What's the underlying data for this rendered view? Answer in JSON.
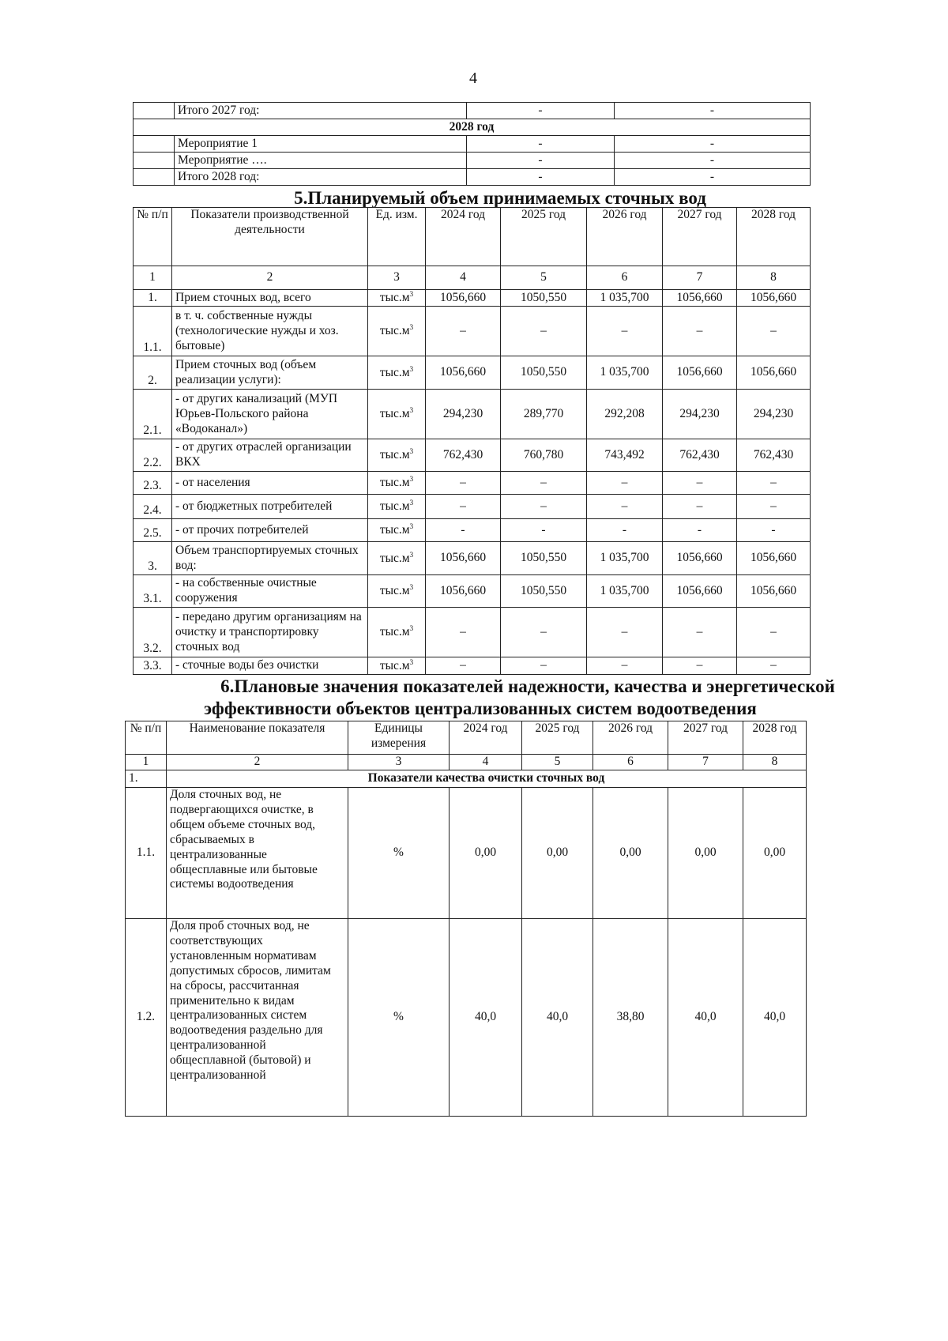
{
  "page_number": "4",
  "events_table": {
    "rows": [
      {
        "label": "Итого 2027 год:",
        "v1": "-",
        "v2": "-"
      },
      {
        "section": "2028 год"
      },
      {
        "label": "Мероприятие 1",
        "v1": "-",
        "v2": "-"
      },
      {
        "label": "Мероприятие ….",
        "v1": "-",
        "v2": "-"
      },
      {
        "label": "Итого 2028 год:",
        "v1": "-",
        "v2": "-"
      }
    ]
  },
  "section5": {
    "title": "5.Планируемый объем принимаемых сточных вод",
    "headers": [
      "№ п/п",
      "Показатели производственной деятельности",
      "Ед. изм.",
      "2024 год",
      "2025 год",
      "2026 год",
      "2027 год",
      "2028 год"
    ],
    "col_numbers": [
      "1",
      "2",
      "3",
      "4",
      "5",
      "6",
      "7",
      "8"
    ],
    "unit": "тыс.м",
    "unit_sup": "3",
    "rows": [
      {
        "no": "1.",
        "name": "Прием сточных вод, всего",
        "values": [
          "1056,660",
          "1050,550",
          "1 035,700",
          "1056,660",
          "1056,660"
        ]
      },
      {
        "no": "1.1.",
        "name": "в т. ч. собственные нужды (технологические нужды и хоз. бытовые)",
        "values": [
          "–",
          "–",
          "–",
          "–",
          "–"
        ]
      },
      {
        "no": "2.",
        "name": "Прием сточных вод (объем реализации услуги):",
        "values": [
          "1056,660",
          "1050,550",
          "1 035,700",
          "1056,660",
          "1056,660"
        ]
      },
      {
        "no": "2.1.",
        "name": "- от других канализаций (МУП Юрьев-Польского района «Водоканал»)",
        "values": [
          "294,230",
          "289,770",
          "292,208",
          "294,230",
          "294,230"
        ]
      },
      {
        "no": "2.2.",
        "name": " - от других отраслей организации ВКХ",
        "values": [
          "762,430",
          "760,780",
          "743,492",
          "762,430",
          "762,430"
        ]
      },
      {
        "no": "2.3.",
        "name": "- от населения",
        "values": [
          "–",
          "–",
          "–",
          "–",
          "–"
        ]
      },
      {
        "no": "2.4.",
        "name": "- от бюджетных потребителей",
        "values": [
          "–",
          "–",
          "–",
          "–",
          "–"
        ]
      },
      {
        "no": "2.5.",
        "name": "- от прочих потребителей",
        "values": [
          "-",
          "-",
          "-",
          "-",
          "-"
        ]
      },
      {
        "no": "3.",
        "name": "Объем транспортируемых сточных вод:",
        "values": [
          "1056,660",
          "1050,550",
          "1 035,700",
          "1056,660",
          "1056,660"
        ]
      },
      {
        "no": "3.1.",
        "name": "- на собственные очистные сооружения",
        "values": [
          "1056,660",
          "1050,550",
          "1 035,700",
          "1056,660",
          "1056,660"
        ]
      },
      {
        "no": "3.2.",
        "name": "- передано другим организациям на очистку и транспортировку сточных вод",
        "values": [
          "–",
          "–",
          "–",
          "–",
          "–"
        ]
      },
      {
        "no": "3.3.",
        "name": "- сточные воды без очистки",
        "values": [
          "–",
          "–",
          "–",
          "–",
          "–"
        ]
      }
    ]
  },
  "section6": {
    "title_line1": "6.Плановые значения показателей надежности, качества и энергетической",
    "title_line2": "эффективности объектов централизованных систем водоотведения",
    "headers": [
      "№ п/п",
      "Наименование показателя",
      "Единицы измерения",
      "2024 год",
      "2025 год",
      "2026 год",
      "2027 год",
      "2028 год"
    ],
    "col_numbers": [
      "1",
      "2",
      "3",
      "4",
      "5",
      "6",
      "7",
      "8"
    ],
    "group": {
      "no": "1.",
      "title": "Показатели качества очистки сточных вод"
    },
    "rows": [
      {
        "no": "1.1.",
        "name": "Доля сточных вод, не подвергающихся очистке, в общем объеме сточных вод, сбрасываемых в централизованные общесплавные или бытовые системы водоотведения",
        "unit": "%",
        "values": [
          "0,00",
          "0,00",
          "0,00",
          "0,00",
          "0,00"
        ]
      },
      {
        "no": "1.2.",
        "name": "Доля проб сточных вод, не соответствующих установленным нормативам допустимых сбросов, лимитам на сбросы, рассчитанная применительно к видам централизованных систем водоотведения раздельно для централизованной общесплавной (бытовой) и централизованной",
        "unit": "%",
        "values": [
          "40,0",
          "40,0",
          "38,80",
          "40,0",
          "40,0"
        ]
      }
    ]
  }
}
